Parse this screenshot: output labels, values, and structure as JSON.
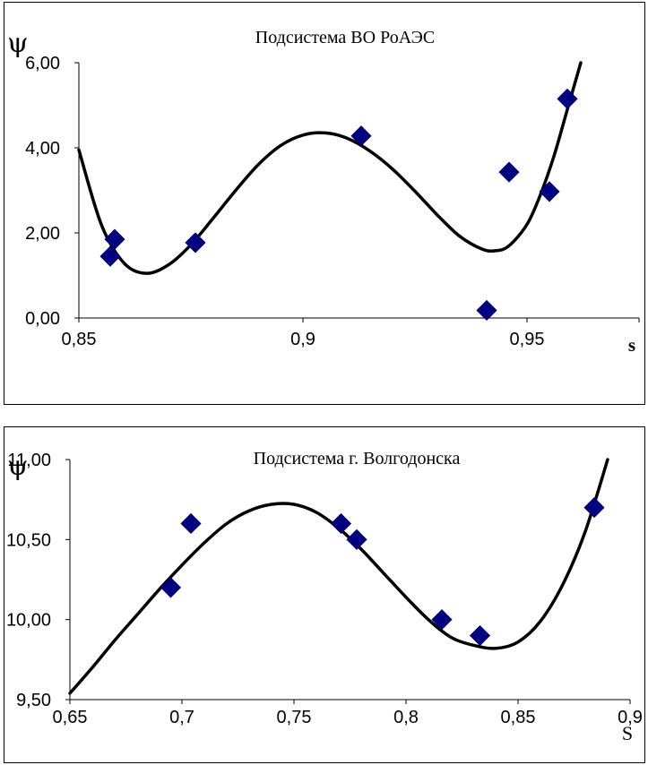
{
  "chart_data": [
    {
      "type": "scatter",
      "title": "Подсистема ВО РоАЭС",
      "ylabel": "ψ",
      "xlabel": "s",
      "xlim": [
        0.85,
        0.975
      ],
      "ylim": [
        0,
        6
      ],
      "x_ticks": [
        "0,85",
        "0,9",
        "0,95"
      ],
      "y_ticks": [
        "0,00",
        "2,00",
        "4,00",
        "6,00"
      ],
      "grid": false,
      "series": [
        {
          "marker": "diamond",
          "color": "#000080",
          "points": [
            {
              "x": 0.857,
              "y": 1.45
            },
            {
              "x": 0.858,
              "y": 1.85
            },
            {
              "x": 0.876,
              "y": 1.77
            },
            {
              "x": 0.913,
              "y": 4.28
            },
            {
              "x": 0.941,
              "y": 0.18
            },
            {
              "x": 0.946,
              "y": 3.43
            },
            {
              "x": 0.955,
              "y": 2.97
            },
            {
              "x": 0.959,
              "y": 5.15
            }
          ]
        }
      ],
      "trend_curve": {
        "type": "polynomial",
        "color": "#000000",
        "points": [
          {
            "x": 0.85,
            "y": 3.95
          },
          {
            "x": 0.855,
            "y": 2.2
          },
          {
            "x": 0.86,
            "y": 1.3
          },
          {
            "x": 0.865,
            "y": 1.05
          },
          {
            "x": 0.87,
            "y": 1.25
          },
          {
            "x": 0.875,
            "y": 1.72
          },
          {
            "x": 0.88,
            "y": 2.35
          },
          {
            "x": 0.885,
            "y": 3.0
          },
          {
            "x": 0.89,
            "y": 3.6
          },
          {
            "x": 0.895,
            "y": 4.05
          },
          {
            "x": 0.9,
            "y": 4.3
          },
          {
            "x": 0.905,
            "y": 4.35
          },
          {
            "x": 0.91,
            "y": 4.22
          },
          {
            "x": 0.915,
            "y": 3.92
          },
          {
            "x": 0.92,
            "y": 3.5
          },
          {
            "x": 0.925,
            "y": 2.98
          },
          {
            "x": 0.93,
            "y": 2.42
          },
          {
            "x": 0.935,
            "y": 1.92
          },
          {
            "x": 0.94,
            "y": 1.62
          },
          {
            "x": 0.943,
            "y": 1.58
          },
          {
            "x": 0.946,
            "y": 1.7
          },
          {
            "x": 0.95,
            "y": 2.2
          },
          {
            "x": 0.953,
            "y": 2.9
          },
          {
            "x": 0.956,
            "y": 3.8
          },
          {
            "x": 0.959,
            "y": 4.9
          },
          {
            "x": 0.962,
            "y": 6.0
          }
        ]
      }
    },
    {
      "type": "scatter",
      "title": "Подсистема г. Волгодонска",
      "ylabel": "ψ",
      "xlabel": "S",
      "xlim": [
        0.65,
        0.9
      ],
      "ylim": [
        9.5,
        11.0
      ],
      "x_ticks": [
        "0,65",
        "0,7",
        "0,75",
        "0,8",
        "0,85",
        "0,9"
      ],
      "y_ticks": [
        "9,50",
        "10,00",
        "10,50",
        "11,00"
      ],
      "grid": false,
      "series": [
        {
          "marker": "diamond",
          "color": "#000080",
          "points": [
            {
              "x": 0.695,
              "y": 10.2
            },
            {
              "x": 0.704,
              "y": 10.6
            },
            {
              "x": 0.771,
              "y": 10.6
            },
            {
              "x": 0.778,
              "y": 10.5
            },
            {
              "x": 0.816,
              "y": 10.0
            },
            {
              "x": 0.833,
              "y": 9.9
            },
            {
              "x": 0.884,
              "y": 10.7
            }
          ]
        }
      ],
      "trend_curve": {
        "type": "polynomial",
        "color": "#000000",
        "points": [
          {
            "x": 0.65,
            "y": 9.54
          },
          {
            "x": 0.66,
            "y": 9.7
          },
          {
            "x": 0.67,
            "y": 9.87
          },
          {
            "x": 0.68,
            "y": 10.03
          },
          {
            "x": 0.69,
            "y": 10.19
          },
          {
            "x": 0.7,
            "y": 10.34
          },
          {
            "x": 0.71,
            "y": 10.48
          },
          {
            "x": 0.72,
            "y": 10.6
          },
          {
            "x": 0.73,
            "y": 10.68
          },
          {
            "x": 0.74,
            "y": 10.72
          },
          {
            "x": 0.75,
            "y": 10.72
          },
          {
            "x": 0.76,
            "y": 10.67
          },
          {
            "x": 0.77,
            "y": 10.57
          },
          {
            "x": 0.78,
            "y": 10.44
          },
          {
            "x": 0.79,
            "y": 10.29
          },
          {
            "x": 0.8,
            "y": 10.14
          },
          {
            "x": 0.81,
            "y": 10.0
          },
          {
            "x": 0.82,
            "y": 9.89
          },
          {
            "x": 0.83,
            "y": 9.84
          },
          {
            "x": 0.84,
            "y": 9.82
          },
          {
            "x": 0.85,
            "y": 9.86
          },
          {
            "x": 0.86,
            "y": 9.99
          },
          {
            "x": 0.87,
            "y": 10.22
          },
          {
            "x": 0.88,
            "y": 10.55
          },
          {
            "x": 0.89,
            "y": 11.0
          }
        ]
      }
    }
  ]
}
